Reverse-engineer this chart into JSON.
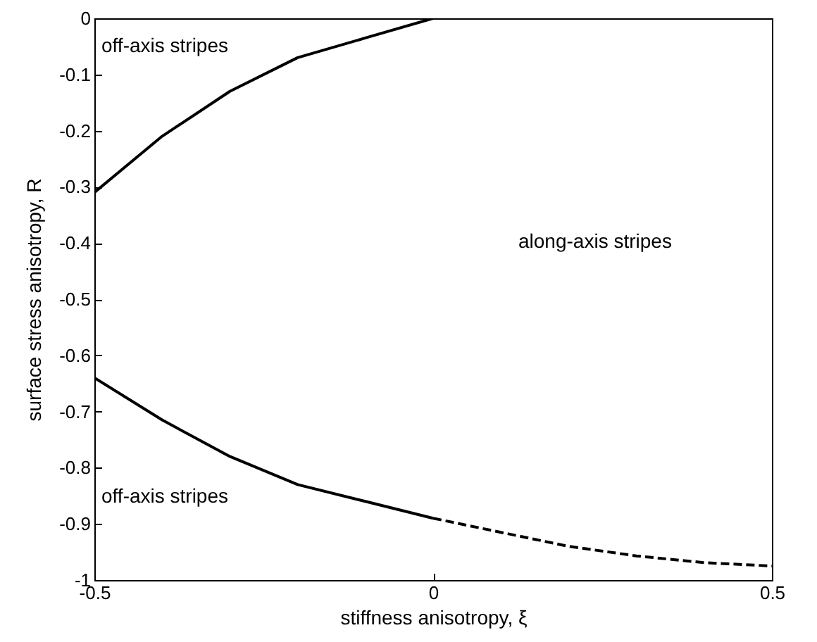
{
  "chart_data": {
    "type": "line",
    "xlabel": "stiffness anisotropy, ξ",
    "ylabel": "surface stress anisotropy, R",
    "xlim": [
      -0.5,
      0.5
    ],
    "xticks": [
      -0.5,
      0,
      0.5
    ],
    "ylim": [
      -1,
      0
    ],
    "yticks": [
      -1,
      -0.9,
      -0.8,
      -0.7,
      -0.6,
      -0.5,
      -0.4,
      -0.3,
      -0.2,
      -0.1,
      0
    ],
    "grid": false,
    "marker": "none",
    "series": [
      {
        "color": "#000000",
        "line_style": "solid",
        "x": [
          -0.5,
          -0.4,
          -0.3,
          -0.2,
          -0.1,
          0
        ],
        "values": [
          -0.31,
          -0.21,
          -0.13,
          -0.07,
          -0.035,
          0
        ]
      },
      {
        "color": "#000000",
        "line_style": "solid",
        "x": [
          -0.5,
          -0.4,
          -0.3,
          -0.2,
          -0.1,
          0
        ],
        "values": [
          -0.64,
          -0.715,
          -0.78,
          -0.83,
          -0.86,
          -0.89
        ]
      },
      {
        "color": "#000000",
        "line_style": "dashed",
        "x": [
          0,
          0.1,
          0.2,
          0.3,
          0.4,
          0.5
        ],
        "values": [
          -0.89,
          -0.915,
          -0.94,
          -0.957,
          -0.969,
          -0.975
        ]
      }
    ],
    "annotations": [
      "off-axis stripes",
      "along-axis stripes",
      "off-axis stripes"
    ]
  }
}
